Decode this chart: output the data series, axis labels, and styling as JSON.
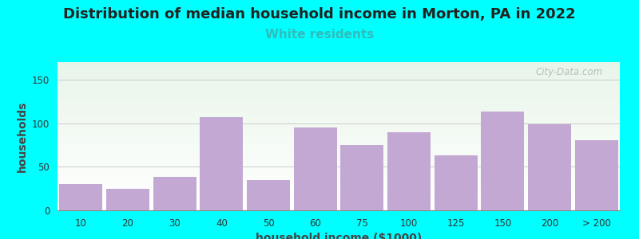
{
  "title": "Distribution of median household income in Morton, PA in 2022",
  "subtitle": "White residents",
  "xlabel": "household income ($1000)",
  "ylabel": "households",
  "title_fontsize": 13,
  "subtitle_fontsize": 11,
  "subtitle_color": "#33BBBB",
  "axis_label_fontsize": 10,
  "background_color": "#00FFFF",
  "plot_bg_top_color": "#e8f5e9",
  "plot_bg_bottom_color": "#ffffff",
  "bar_color": "#C4A8D4",
  "categories": [
    "10",
    "20",
    "30",
    "40",
    "50",
    "60",
    "75",
    "100",
    "125",
    "150",
    "200",
    "> 200"
  ],
  "values": [
    30,
    25,
    38,
    107,
    35,
    95,
    75,
    90,
    63,
    113,
    99,
    80
  ],
  "ylim": [
    0,
    170
  ],
  "yticks": [
    0,
    50,
    100,
    150
  ],
  "watermark": "City-Data.com"
}
